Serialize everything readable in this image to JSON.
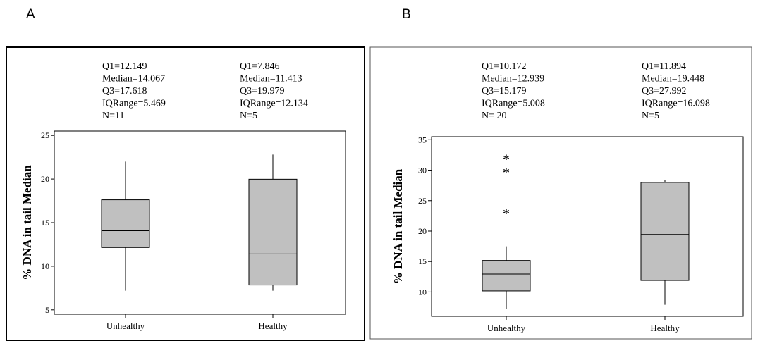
{
  "panels": [
    {
      "label": "A",
      "stats": [
        [
          "Q1=12.149",
          "Median=14.067",
          "Q3=17.618",
          "IQRange=5.469",
          "N=11"
        ],
        [
          "Q1=7.846",
          "Median=11.413",
          "Q3=19.979",
          "IQRange=12.134",
          "N=5"
        ]
      ]
    },
    {
      "label": "B",
      "stats": [
        [
          "Q1=10.172",
          "Median=12.939",
          "Q3=15.179",
          "IQRange=5.008",
          "N= 20"
        ],
        [
          "Q1=11.894",
          "Median=19.448",
          "Q3=27.992",
          "IQRange=16.098",
          "N=5"
        ]
      ]
    }
  ],
  "chart_data": [
    {
      "type": "box",
      "title": "",
      "ylabel": "% DNA in tail Median",
      "xlabel": "",
      "ylim": [
        4.5,
        25.5
      ],
      "yticks": [
        5,
        10,
        15,
        20,
        25
      ],
      "categories": [
        "Unhealthy",
        "Healthy"
      ],
      "boxes": [
        {
          "category": "Unhealthy",
          "whisker_low": 7.2,
          "q1": 12.149,
          "median": 14.067,
          "q3": 17.618,
          "whisker_high": 22.0,
          "outliers": []
        },
        {
          "category": "Healthy",
          "whisker_low": 7.2,
          "q1": 7.846,
          "median": 11.413,
          "q3": 19.979,
          "whisker_high": 22.8,
          "outliers": []
        }
      ],
      "box_color": "#c0c0c0"
    },
    {
      "type": "box",
      "title": "",
      "ylabel": "% DNA in tail Median",
      "xlabel": "",
      "ylim": [
        6,
        35.5
      ],
      "yticks": [
        10,
        15,
        20,
        25,
        30,
        35
      ],
      "categories": [
        "Unhealthy",
        "Healthy"
      ],
      "boxes": [
        {
          "category": "Unhealthy",
          "whisker_low": 7.2,
          "q1": 10.172,
          "median": 12.939,
          "q3": 15.179,
          "whisker_high": 17.5,
          "outliers": [
            23.2,
            29.9,
            32.1
          ]
        },
        {
          "category": "Healthy",
          "whisker_low": 7.9,
          "q1": 11.894,
          "median": 19.448,
          "q3": 27.992,
          "whisker_high": 28.4,
          "outliers": []
        }
      ],
      "box_color": "#c0c0c0"
    }
  ]
}
